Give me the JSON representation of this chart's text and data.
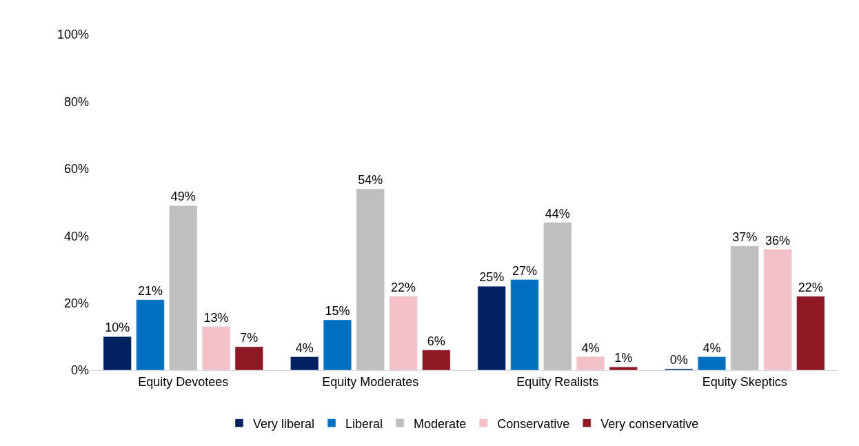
{
  "chart_data": {
    "type": "bar",
    "categories": [
      "Equity Devotees",
      "Equity Moderates",
      "Equity Realists",
      "Equity Skeptics"
    ],
    "series": [
      {
        "name": "Very liberal",
        "color": "#002060",
        "values": [
          10,
          4,
          25,
          0.4
        ],
        "value_labels": [
          "10%",
          "4%",
          "25%",
          "0%"
        ]
      },
      {
        "name": "Liberal",
        "color": "#0070c0",
        "values": [
          21,
          15,
          27,
          4
        ],
        "value_labels": [
          "21%",
          "15%",
          "27%",
          "4%"
        ]
      },
      {
        "name": "Moderate",
        "color": "#bfbfbf",
        "values": [
          49,
          54,
          44,
          37
        ],
        "value_labels": [
          "49%",
          "54%",
          "44%",
          "37%"
        ]
      },
      {
        "name": "Conservative",
        "color": "#f4c2c6",
        "values": [
          13,
          22,
          4,
          36
        ],
        "value_labels": [
          "13%",
          "22%",
          "4%",
          "36%"
        ]
      },
      {
        "name": "Very conservative",
        "color": "#8e1824",
        "values": [
          7,
          6,
          1,
          22
        ],
        "value_labels": [
          "7%",
          "6%",
          "1%",
          "22%"
        ]
      }
    ],
    "ylim": [
      0,
      100
    ],
    "yticks": [
      {
        "value": 0,
        "label": "0%"
      },
      {
        "value": 20,
        "label": "20%"
      },
      {
        "value": 40,
        "label": "40%"
      },
      {
        "value": 60,
        "label": "60%"
      },
      {
        "value": 80,
        "label": "80%"
      },
      {
        "value": 100,
        "label": "100%"
      }
    ],
    "legend": "bottom"
  }
}
